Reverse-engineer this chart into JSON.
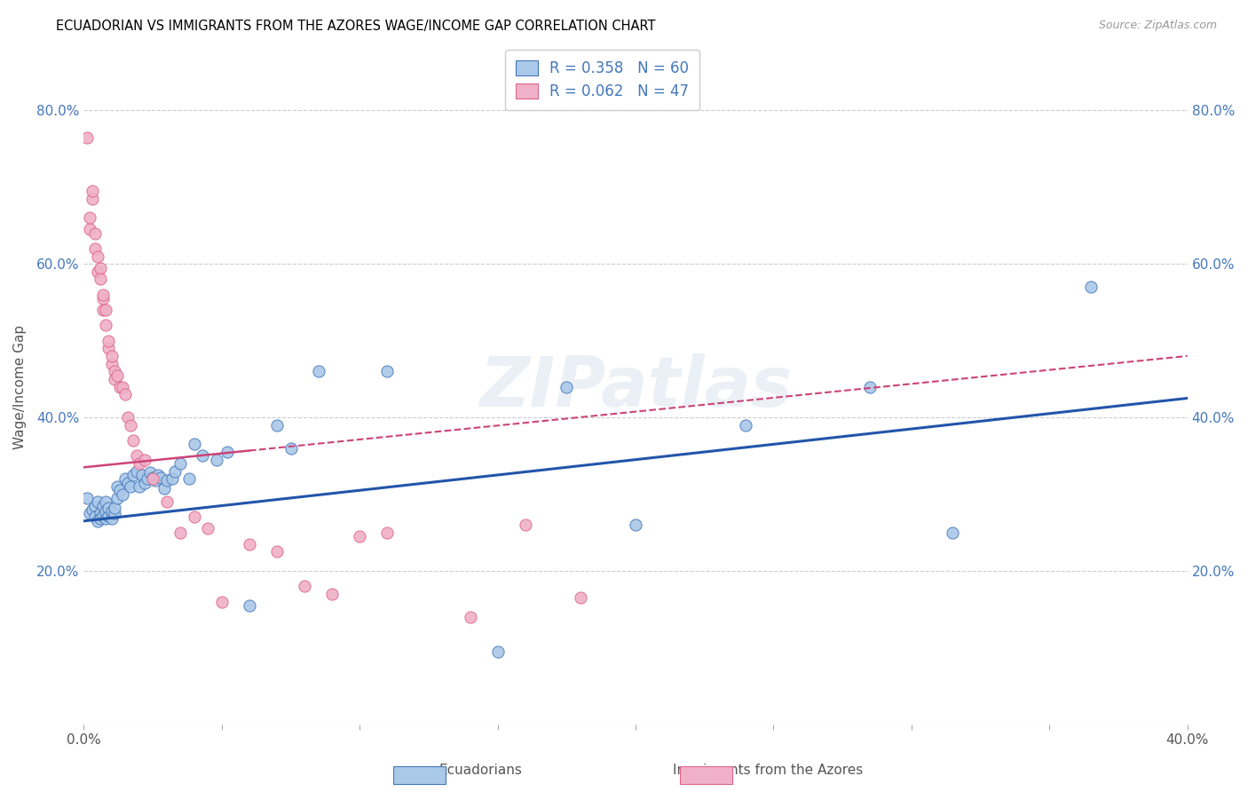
{
  "title": "ECUADORIAN VS IMMIGRANTS FROM THE AZORES WAGE/INCOME GAP CORRELATION CHART",
  "source": "Source: ZipAtlas.com",
  "ylabel": "Wage/Income Gap",
  "xlim": [
    0.0,
    0.4
  ],
  "ylim": [
    0.0,
    0.88
  ],
  "xticks": [
    0.0,
    0.05,
    0.1,
    0.15,
    0.2,
    0.25,
    0.3,
    0.35,
    0.4
  ],
  "xtick_labels": [
    "0.0%",
    "",
    "",
    "",
    "",
    "",
    "",
    "",
    "40.0%"
  ],
  "yticks": [
    0.0,
    0.2,
    0.4,
    0.6,
    0.8
  ],
  "ytick_labels": [
    "",
    "20.0%",
    "40.0%",
    "60.0%",
    "80.0%"
  ],
  "blue_color": "#aac8e8",
  "blue_edge_color": "#4477bb",
  "blue_line_color": "#2255aa",
  "pink_color": "#f0b0c8",
  "pink_edge_color": "#dd6688",
  "pink_line_color": "#cc4477",
  "tick_color": "#4477bb",
  "R_blue": 0.358,
  "N_blue": 60,
  "R_pink": 0.062,
  "N_pink": 47,
  "watermark": "ZIPatlas",
  "blue_line_x0": 0.0,
  "blue_line_y0": 0.265,
  "blue_line_x1": 0.4,
  "blue_line_y1": 0.425,
  "pink_line_x0": 0.0,
  "pink_line_y0": 0.335,
  "pink_line_x1": 0.4,
  "pink_line_y1": 0.48,
  "blue_scatter_x": [
    0.001,
    0.002,
    0.003,
    0.004,
    0.004,
    0.005,
    0.005,
    0.006,
    0.006,
    0.007,
    0.007,
    0.008,
    0.008,
    0.008,
    0.009,
    0.009,
    0.01,
    0.01,
    0.011,
    0.011,
    0.012,
    0.012,
    0.013,
    0.014,
    0.015,
    0.016,
    0.017,
    0.018,
    0.019,
    0.02,
    0.021,
    0.022,
    0.023,
    0.024,
    0.025,
    0.026,
    0.027,
    0.028,
    0.029,
    0.03,
    0.032,
    0.033,
    0.035,
    0.038,
    0.04,
    0.043,
    0.048,
    0.052,
    0.06,
    0.07,
    0.075,
    0.085,
    0.11,
    0.15,
    0.175,
    0.2,
    0.24,
    0.285,
    0.315,
    0.365
  ],
  "blue_scatter_y": [
    0.295,
    0.275,
    0.28,
    0.285,
    0.27,
    0.265,
    0.29,
    0.275,
    0.268,
    0.272,
    0.285,
    0.268,
    0.278,
    0.29,
    0.272,
    0.282,
    0.268,
    0.278,
    0.275,
    0.282,
    0.295,
    0.31,
    0.305,
    0.3,
    0.32,
    0.315,
    0.31,
    0.325,
    0.33,
    0.31,
    0.325,
    0.315,
    0.32,
    0.328,
    0.322,
    0.318,
    0.325,
    0.322,
    0.308,
    0.318,
    0.32,
    0.33,
    0.34,
    0.32,
    0.365,
    0.35,
    0.345,
    0.355,
    0.155,
    0.39,
    0.36,
    0.46,
    0.46,
    0.095,
    0.44,
    0.26,
    0.39,
    0.44,
    0.25,
    0.57
  ],
  "pink_scatter_x": [
    0.001,
    0.002,
    0.002,
    0.003,
    0.003,
    0.004,
    0.004,
    0.005,
    0.005,
    0.006,
    0.006,
    0.007,
    0.007,
    0.007,
    0.008,
    0.008,
    0.009,
    0.009,
    0.01,
    0.01,
    0.011,
    0.011,
    0.012,
    0.013,
    0.014,
    0.015,
    0.016,
    0.017,
    0.018,
    0.019,
    0.02,
    0.022,
    0.025,
    0.03,
    0.035,
    0.04,
    0.045,
    0.05,
    0.06,
    0.07,
    0.08,
    0.09,
    0.1,
    0.11,
    0.14,
    0.16,
    0.18
  ],
  "pink_scatter_y": [
    0.765,
    0.645,
    0.66,
    0.685,
    0.695,
    0.62,
    0.64,
    0.59,
    0.61,
    0.595,
    0.58,
    0.54,
    0.555,
    0.56,
    0.52,
    0.54,
    0.49,
    0.5,
    0.47,
    0.48,
    0.46,
    0.45,
    0.455,
    0.44,
    0.44,
    0.43,
    0.4,
    0.39,
    0.37,
    0.35,
    0.34,
    0.345,
    0.32,
    0.29,
    0.25,
    0.27,
    0.255,
    0.16,
    0.235,
    0.225,
    0.18,
    0.17,
    0.245,
    0.25,
    0.14,
    0.26,
    0.165
  ]
}
